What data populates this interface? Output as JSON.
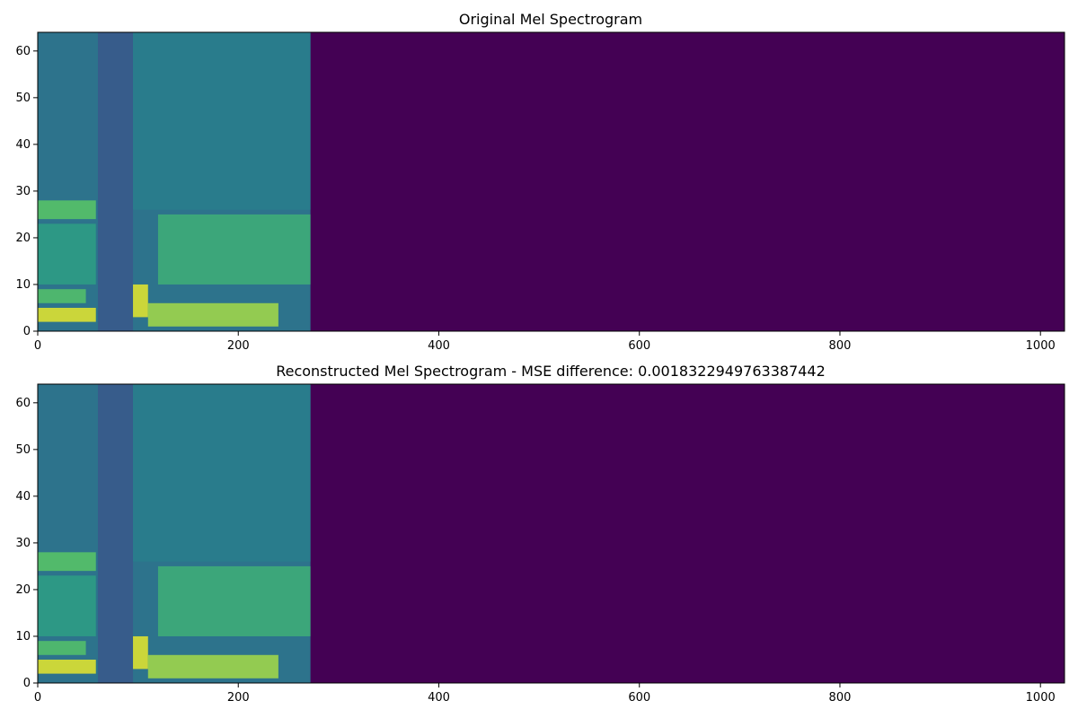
{
  "chart_data": [
    {
      "type": "heatmap",
      "title": "Original Mel Spectrogram",
      "xlabel": "",
      "ylabel": "",
      "xlim": [
        0,
        1024
      ],
      "ylim": [
        0,
        64
      ],
      "x_ticks": [
        0,
        200,
        400,
        600,
        800,
        1000
      ],
      "y_ticks": [
        0,
        10,
        20,
        30,
        40,
        50,
        60
      ],
      "colormap": "viridis",
      "origin": "lower",
      "signal_end_frame": 272,
      "empty_color": "#440154",
      "bands": [
        {
          "x": [
            0,
            58
          ],
          "y": [
            2,
            5
          ],
          "level": 0.95
        },
        {
          "x": [
            0,
            48
          ],
          "y": [
            6,
            9
          ],
          "level": 0.7
        },
        {
          "x": [
            0,
            58
          ],
          "y": [
            24,
            28
          ],
          "level": 0.72
        },
        {
          "x": [
            0,
            58
          ],
          "y": [
            10,
            23
          ],
          "level": 0.55
        },
        {
          "x": [
            60,
            95
          ],
          "y": [
            0,
            64
          ],
          "level": 0.28
        },
        {
          "x": [
            95,
            110
          ],
          "y": [
            3,
            10
          ],
          "level": 0.95
        },
        {
          "x": [
            110,
            240
          ],
          "y": [
            1,
            6
          ],
          "level": 0.85
        },
        {
          "x": [
            120,
            272
          ],
          "y": [
            10,
            25
          ],
          "level": 0.62
        },
        {
          "x": [
            95,
            272
          ],
          "y": [
            26,
            64
          ],
          "level": 0.42
        }
      ]
    },
    {
      "type": "heatmap",
      "title": "Reconstructed Mel Spectrogram - MSE difference: 0.0018322949763387442",
      "xlabel": "",
      "ylabel": "",
      "xlim": [
        0,
        1024
      ],
      "ylim": [
        0,
        64
      ],
      "x_ticks": [
        0,
        200,
        400,
        600,
        800,
        1000
      ],
      "y_ticks": [
        0,
        10,
        20,
        30,
        40,
        50,
        60
      ],
      "colormap": "viridis",
      "origin": "lower",
      "signal_end_frame": 272,
      "empty_color": "#440154",
      "bands": [
        {
          "x": [
            0,
            58
          ],
          "y": [
            2,
            5
          ],
          "level": 0.95
        },
        {
          "x": [
            0,
            48
          ],
          "y": [
            6,
            9
          ],
          "level": 0.7
        },
        {
          "x": [
            0,
            58
          ],
          "y": [
            24,
            28
          ],
          "level": 0.72
        },
        {
          "x": [
            0,
            58
          ],
          "y": [
            10,
            23
          ],
          "level": 0.55
        },
        {
          "x": [
            60,
            95
          ],
          "y": [
            0,
            64
          ],
          "level": 0.28
        },
        {
          "x": [
            95,
            110
          ],
          "y": [
            3,
            10
          ],
          "level": 0.95
        },
        {
          "x": [
            110,
            240
          ],
          "y": [
            1,
            6
          ],
          "level": 0.85
        },
        {
          "x": [
            120,
            272
          ],
          "y": [
            10,
            25
          ],
          "level": 0.62
        },
        {
          "x": [
            95,
            272
          ],
          "y": [
            26,
            64
          ],
          "level": 0.42
        }
      ]
    }
  ]
}
